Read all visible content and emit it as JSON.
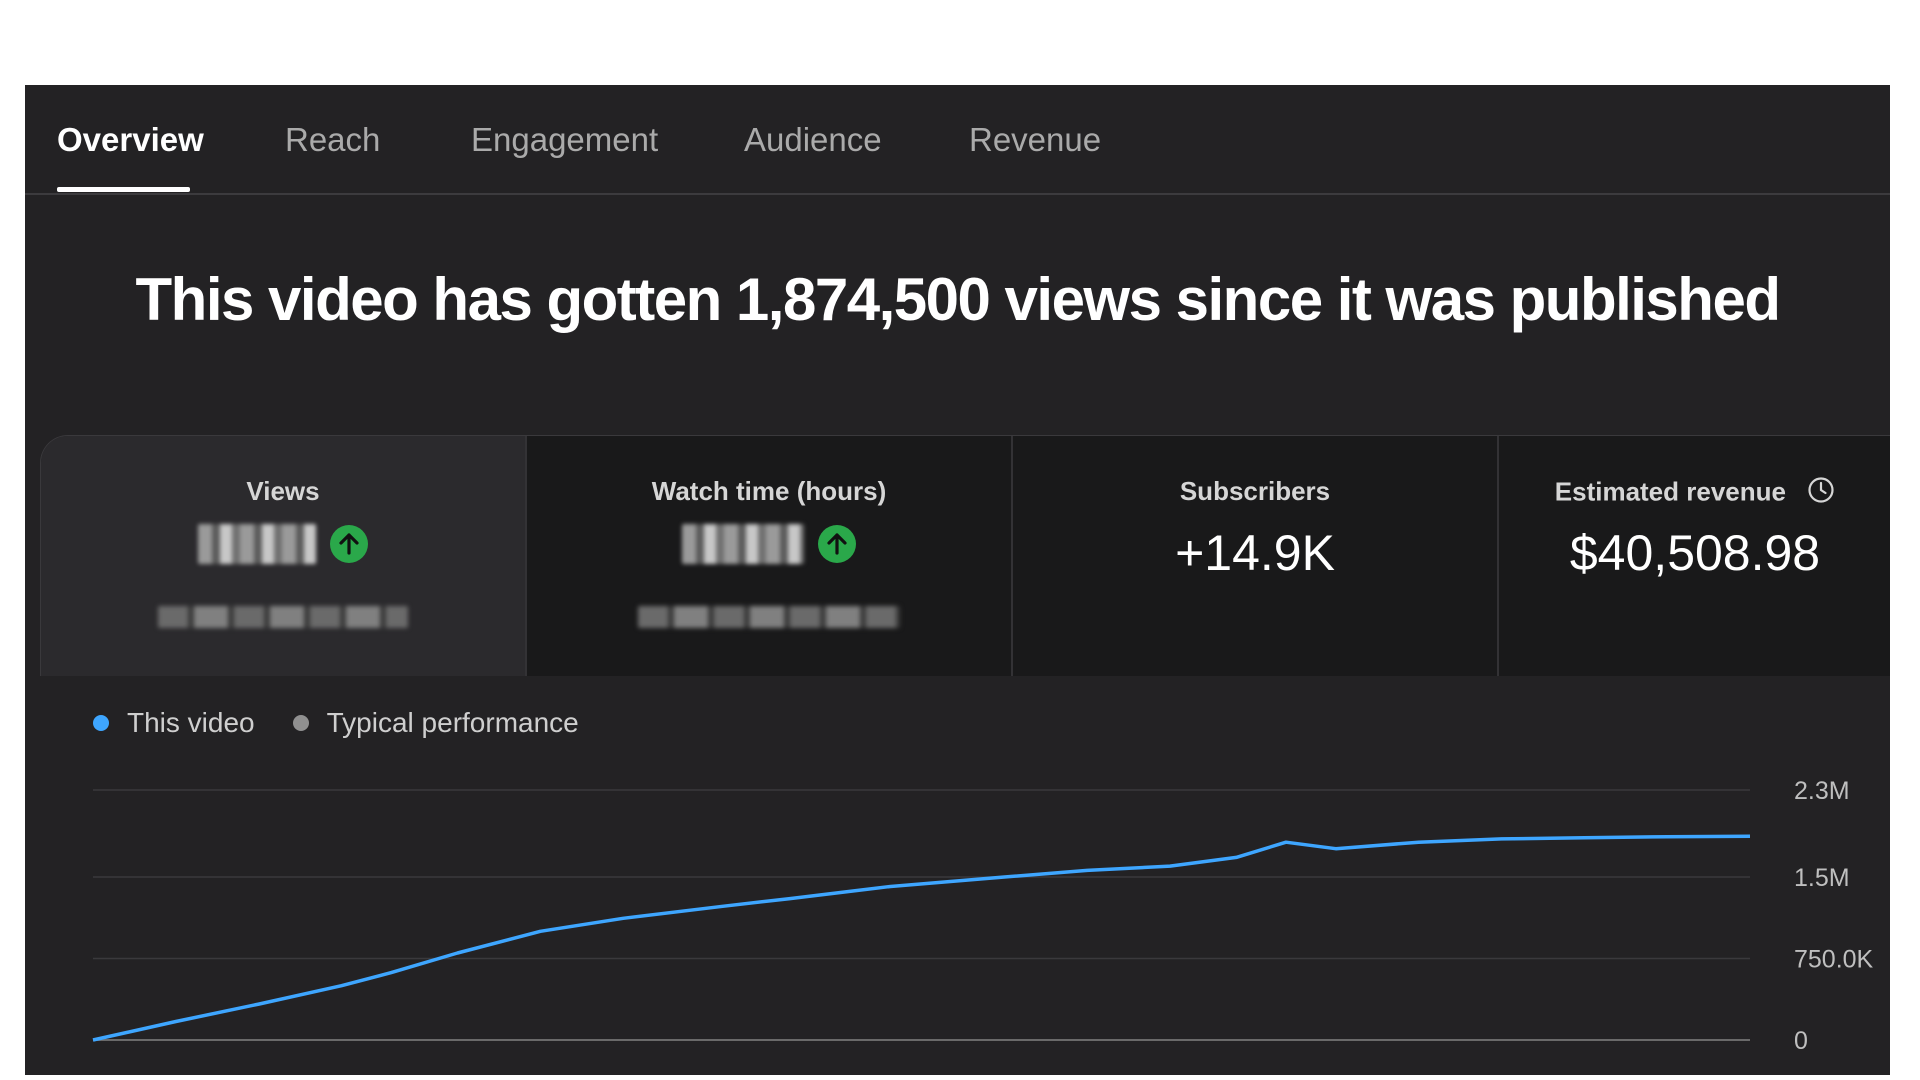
{
  "tabs": [
    {
      "label": "Overview",
      "active": true
    },
    {
      "label": "Reach",
      "active": false
    },
    {
      "label": "Engagement",
      "active": false
    },
    {
      "label": "Audience",
      "active": false
    },
    {
      "label": "Revenue",
      "active": false
    }
  ],
  "headline": "This video has gotten 1,874,500 views since it was published",
  "metrics": {
    "views": {
      "title": "Views",
      "trend": "up"
    },
    "watch_time": {
      "title": "Watch time (hours)",
      "trend": "up"
    },
    "subscribers": {
      "title": "Subscribers",
      "value": "+14.9K"
    },
    "revenue": {
      "title": "Estimated revenue",
      "value": "$40,508.98"
    }
  },
  "legend": {
    "this_video": {
      "label": "This video",
      "color": "#3ea6ff"
    },
    "typical": {
      "label": "Typical performance",
      "color": "#909090"
    }
  },
  "chart_data": {
    "type": "line",
    "title": "",
    "xlabel": "",
    "ylabel": "",
    "ytick_labels": [
      "0",
      "750.0K",
      "1.5M",
      "2.3M"
    ],
    "ytick_values": [
      0,
      750000,
      1500000,
      2300000
    ],
    "ylim": [
      0,
      2300000
    ],
    "xlim": [
      0,
      1
    ],
    "grid": true,
    "series": [
      {
        "name": "This video",
        "color": "#3ea6ff",
        "x": [
          0,
          0.05,
          0.1,
          0.15,
          0.18,
          0.22,
          0.27,
          0.32,
          0.38,
          0.42,
          0.48,
          0.55,
          0.6,
          0.65,
          0.69,
          0.72,
          0.75,
          0.8,
          0.85,
          0.9,
          0.95,
          1.0
        ],
        "y": [
          0,
          170000,
          330000,
          500000,
          620000,
          800000,
          1000000,
          1120000,
          1230000,
          1300000,
          1410000,
          1500000,
          1560000,
          1600000,
          1680000,
          1820000,
          1760000,
          1820000,
          1850000,
          1860000,
          1870000,
          1874500
        ]
      }
    ]
  }
}
